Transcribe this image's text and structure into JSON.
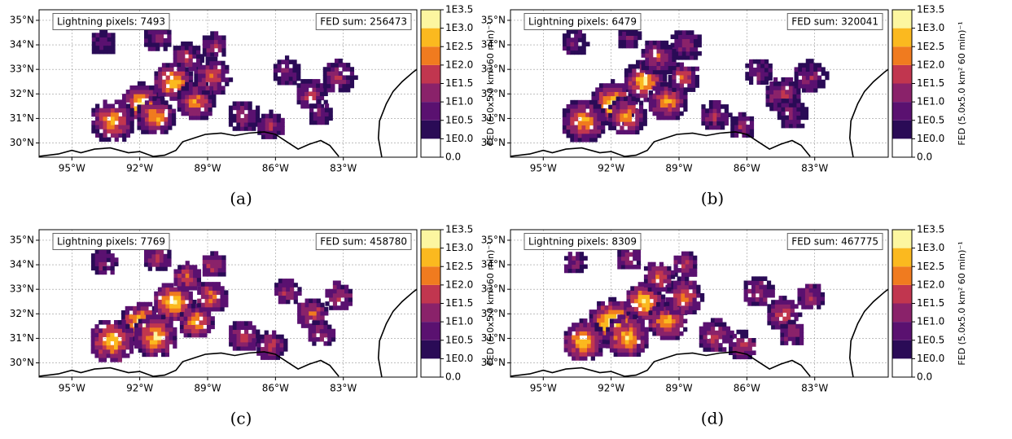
{
  "chart_data": [
    {
      "type": "map",
      "caption": "(a)",
      "annotation_left": "Lightning pixels: 7493",
      "annotation_right": "FED sum: 256473",
      "xlim": [
        -96.45,
        -79.75
      ],
      "ylim": [
        29.42,
        35.43
      ],
      "xticks": [
        {
          "value": -95,
          "label": "95°W"
        },
        {
          "value": -92,
          "label": "92°W"
        },
        {
          "value": -89,
          "label": "89°W"
        },
        {
          "value": -86,
          "label": "86°W"
        },
        {
          "value": -83,
          "label": "83°W"
        }
      ],
      "yticks": [
        {
          "value": 30,
          "label": "30°N"
        },
        {
          "value": 31,
          "label": "31°N"
        },
        {
          "value": 32,
          "label": "32°N"
        },
        {
          "value": 33,
          "label": "33°N"
        },
        {
          "value": 34,
          "label": "34°N"
        },
        {
          "value": 35,
          "label": "35°N"
        }
      ],
      "grid": true,
      "colorbar_label": "FED (5.0x5.0 km² 60 min)⁻¹",
      "colorbar_ticks": [
        "0.0",
        "1E0.0",
        "1E0.5",
        "1E1.0",
        "1E1.5",
        "1E2.0",
        "1E2.5",
        "1E3.0",
        "1E3.5"
      ],
      "colors": [
        "#ffffff",
        "#2a0b56",
        "#5a1170",
        "#8a226a",
        "#c1364f",
        "#f07b1f",
        "#fbb91f",
        "#fcf6a0"
      ]
    },
    {
      "type": "map",
      "caption": "(b)",
      "annotation_left": "Lightning pixels: 6479",
      "annotation_right": "FED sum: 320041",
      "xlim": [
        -96.45,
        -79.75
      ],
      "ylim": [
        29.42,
        35.43
      ],
      "xticks": [
        {
          "value": -95,
          "label": "95°W"
        },
        {
          "value": -92,
          "label": "92°W"
        },
        {
          "value": -89,
          "label": "89°W"
        },
        {
          "value": -86,
          "label": "86°W"
        },
        {
          "value": -83,
          "label": "83°W"
        }
      ],
      "yticks": [
        {
          "value": 30,
          "label": "30°N"
        },
        {
          "value": 31,
          "label": "31°N"
        },
        {
          "value": 32,
          "label": "32°N"
        },
        {
          "value": 33,
          "label": "33°N"
        },
        {
          "value": 34,
          "label": "34°N"
        },
        {
          "value": 35,
          "label": "35°N"
        }
      ],
      "grid": true,
      "colorbar_label": "FED (5.0x5.0 km² 60 min)⁻¹",
      "colorbar_ticks": [
        "0.0",
        "1E0.0",
        "1E0.5",
        "1E1.0",
        "1E1.5",
        "1E2.0",
        "1E2.5",
        "1E3.0",
        "1E3.5"
      ],
      "colors": [
        "#ffffff",
        "#2a0b56",
        "#5a1170",
        "#8a226a",
        "#c1364f",
        "#f07b1f",
        "#fbb91f",
        "#fcf6a0"
      ]
    },
    {
      "type": "map",
      "caption": "(c)",
      "annotation_left": "Lightning pixels: 7769",
      "annotation_right": "FED sum: 458780",
      "xlim": [
        -96.45,
        -79.75
      ],
      "ylim": [
        29.42,
        35.43
      ],
      "xticks": [
        {
          "value": -95,
          "label": "95°W"
        },
        {
          "value": -92,
          "label": "92°W"
        },
        {
          "value": -89,
          "label": "89°W"
        },
        {
          "value": -86,
          "label": "86°W"
        },
        {
          "value": -83,
          "label": "83°W"
        }
      ],
      "yticks": [
        {
          "value": 30,
          "label": "30°N"
        },
        {
          "value": 31,
          "label": "31°N"
        },
        {
          "value": 32,
          "label": "32°N"
        },
        {
          "value": 33,
          "label": "33°N"
        },
        {
          "value": 34,
          "label": "34°N"
        },
        {
          "value": 35,
          "label": "35°N"
        }
      ],
      "grid": true,
      "colorbar_label": "FED (5.0x5.0 km² 60 min)⁻¹",
      "colorbar_ticks": [
        "0.0",
        "1E0.0",
        "1E0.5",
        "1E1.0",
        "1E1.5",
        "1E2.0",
        "1E2.5",
        "1E3.0",
        "1E3.5"
      ],
      "colors": [
        "#ffffff",
        "#2a0b56",
        "#5a1170",
        "#8a226a",
        "#c1364f",
        "#f07b1f",
        "#fbb91f",
        "#fcf6a0"
      ]
    },
    {
      "type": "map",
      "caption": "(d)",
      "annotation_left": "Lightning pixels: 8309",
      "annotation_right": "FED sum: 467775",
      "xlim": [
        -96.45,
        -79.75
      ],
      "ylim": [
        29.42,
        35.43
      ],
      "xticks": [
        {
          "value": -95,
          "label": "95°W"
        },
        {
          "value": -92,
          "label": "92°W"
        },
        {
          "value": -89,
          "label": "89°W"
        },
        {
          "value": -86,
          "label": "86°W"
        },
        {
          "value": -83,
          "label": "83°W"
        }
      ],
      "yticks": [
        {
          "value": 30,
          "label": "30°N"
        },
        {
          "value": 31,
          "label": "31°N"
        },
        {
          "value": 32,
          "label": "32°N"
        },
        {
          "value": 33,
          "label": "33°N"
        },
        {
          "value": 34,
          "label": "34°N"
        },
        {
          "value": 35,
          "label": "35°N"
        }
      ],
      "grid": true,
      "colorbar_label": "FED (5.0x5.0 km² 60 min)⁻¹",
      "colorbar_ticks": [
        "0.0",
        "1E0.0",
        "1E0.5",
        "1E1.0",
        "1E1.5",
        "1E2.0",
        "1E2.5",
        "1E3.0",
        "1E3.5"
      ],
      "colors": [
        "#ffffff",
        "#2a0b56",
        "#5a1170",
        "#8a226a",
        "#c1364f",
        "#f07b1f",
        "#fbb91f",
        "#fcf6a0"
      ]
    }
  ]
}
